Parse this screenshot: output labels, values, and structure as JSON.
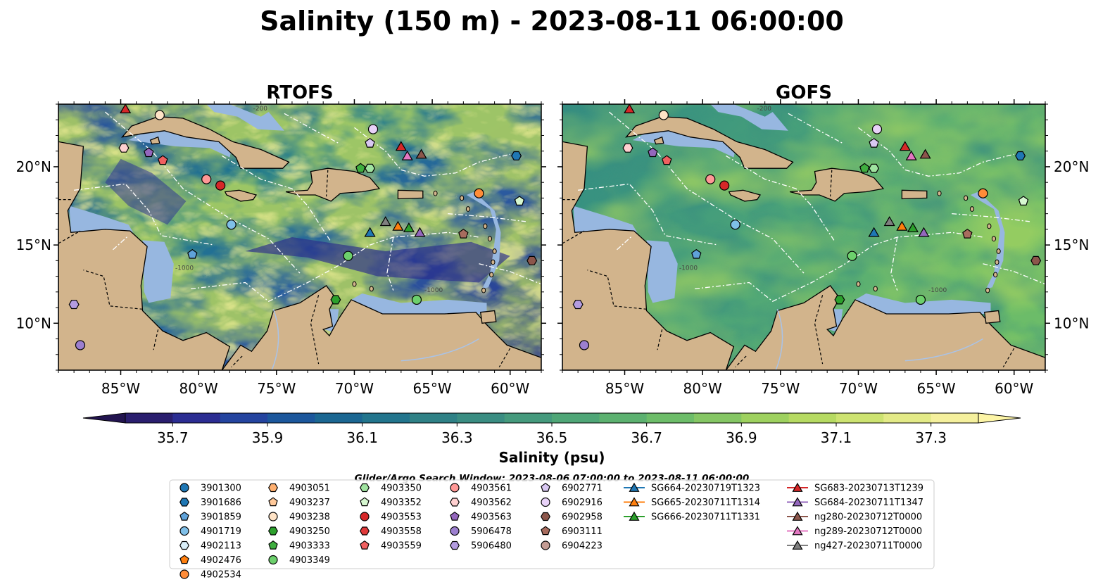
{
  "title": "Salinity (150 m) - 2023-08-11 06:00:00",
  "panels": [
    {
      "name": "RTOFS",
      "mode": "rtofs"
    },
    {
      "name": "GOFS",
      "mode": "gofs"
    }
  ],
  "map": {
    "lon_range": [
      -89,
      -58
    ],
    "lat_range": [
      7,
      24
    ],
    "lon_ticks": [
      -85,
      -80,
      -75,
      -70,
      -65,
      -60
    ],
    "lon_tick_labels": [
      "85°W",
      "80°W",
      "75°W",
      "70°W",
      "65°W",
      "60°W"
    ],
    "lat_ticks": [
      10,
      15,
      20
    ],
    "lat_tick_labels": [
      "10°N",
      "15°N",
      "20°N"
    ],
    "contour_labels": [
      "-1000",
      "-1000",
      "-200"
    ],
    "colors": {
      "land": "#d2b48c",
      "shelf": "#97b7e0",
      "deep": "#2c2a7e"
    }
  },
  "colorbar": {
    "label": "Salinity (psu)",
    "min": 35.6,
    "max": 37.4,
    "step": 0.1,
    "ticks": [
      "35.7",
      "35.9",
      "36.1",
      "36.3",
      "36.5",
      "36.7",
      "36.9",
      "37.1",
      "37.3"
    ],
    "extend": "both",
    "colors": [
      "#2a1e6e",
      "#2b2d92",
      "#24449f",
      "#1c579c",
      "#1b6792",
      "#22758d",
      "#2f8186",
      "#3a8d82",
      "#459a7d",
      "#4fa677",
      "#5cb170",
      "#6dbd69",
      "#85c664",
      "#9ed15f",
      "#b6da62",
      "#cde371",
      "#e3ea87",
      "#f5f09d"
    ]
  },
  "search_window": "Glider/Argo Search Window: 2023-08-06 07:00:00 to 2023-08-11 06:00:00",
  "legend": [
    {
      "label": "3901300",
      "marker": "circle",
      "color": "#1f77b4"
    },
    {
      "label": "3901686",
      "marker": "hexagon",
      "color": "#1f77b4"
    },
    {
      "label": "3901859",
      "marker": "pentagon",
      "color": "#5fa2d9"
    },
    {
      "label": "4901719",
      "marker": "circle",
      "color": "#7fbfe8"
    },
    {
      "label": "4902113",
      "marker": "hexagon",
      "color": "#d9eef8"
    },
    {
      "label": "4902476",
      "marker": "pentagon",
      "color": "#ff7f0e"
    },
    {
      "label": "4902534",
      "marker": "circle",
      "color": "#ff8c38"
    },
    {
      "label": "4903051",
      "marker": "hexagon",
      "color": "#ffb070"
    },
    {
      "label": "4903237",
      "marker": "pentagon",
      "color": "#ffc99a"
    },
    {
      "label": "4903238",
      "marker": "circle",
      "color": "#ffe3c6"
    },
    {
      "label": "4903250",
      "marker": "hexagon",
      "color": "#2ca02c"
    },
    {
      "label": "4903333",
      "marker": "pentagon",
      "color": "#3fae3f"
    },
    {
      "label": "4903349",
      "marker": "circle",
      "color": "#6cd06c"
    },
    {
      "label": "4903350",
      "marker": "hexagon",
      "color": "#a0e3a0"
    },
    {
      "label": "4903352",
      "marker": "pentagon",
      "color": "#d6f7d0"
    },
    {
      "label": "4903553",
      "marker": "circle",
      "color": "#d62728"
    },
    {
      "label": "4903558",
      "marker": "hexagon",
      "color": "#e0393a"
    },
    {
      "label": "4903559",
      "marker": "pentagon",
      "color": "#f06060"
    },
    {
      "label": "4903561",
      "marker": "circle",
      "color": "#ff9896"
    },
    {
      "label": "4903562",
      "marker": "hexagon",
      "color": "#ffd0d0"
    },
    {
      "label": "4903563",
      "marker": "pentagon",
      "color": "#9467bd"
    },
    {
      "label": "5906478",
      "marker": "circle",
      "color": "#9c7fcf"
    },
    {
      "label": "5906480",
      "marker": "hexagon",
      "color": "#b49ce0"
    },
    {
      "label": "6902771",
      "marker": "pentagon",
      "color": "#d8c8f2"
    },
    {
      "label": "6902916",
      "marker": "circle",
      "color": "#e8d2f8"
    },
    {
      "label": "6902958",
      "marker": "hexagon",
      "color": "#8c564b"
    },
    {
      "label": "6903111",
      "marker": "pentagon",
      "color": "#a86c5e"
    },
    {
      "label": "6904223",
      "marker": "circle",
      "color": "#c49c94"
    },
    {
      "label": "SG664-20230719T1323",
      "marker": "triangle",
      "color": "#1f77b4"
    },
    {
      "label": "SG665-20230711T1314",
      "marker": "triangle",
      "color": "#ff7f0e"
    },
    {
      "label": "SG666-20230711T1331",
      "marker": "triangle",
      "color": "#2ca02c"
    },
    {
      "label": "SG683-20230713T1239",
      "marker": "triangle",
      "color": "#d62728"
    },
    {
      "label": "SG684-20230711T1347",
      "marker": "triangle",
      "color": "#9467bd"
    },
    {
      "label": "ng280-20230712T0000",
      "marker": "triangle",
      "color": "#8c564b"
    },
    {
      "label": "ng289-20230712T0000",
      "marker": "triangle",
      "color": "#e377c2"
    },
    {
      "label": "ng427-20230711T0000",
      "marker": "triangle",
      "color": "#7f7f7f"
    }
  ],
  "map_markers": [
    {
      "id": "3901686",
      "lon": -59.6,
      "lat": 20.7
    },
    {
      "id": "4901719",
      "lon": -77.9,
      "lat": 16.3
    },
    {
      "id": "3901859",
      "lon": -80.4,
      "lat": 14.4
    },
    {
      "id": "4902534",
      "lon": -62.0,
      "lat": 18.3
    },
    {
      "id": "4903352",
      "lon": -59.4,
      "lat": 17.8
    },
    {
      "id": "4903349",
      "lon": -70.4,
      "lat": 14.3
    },
    {
      "id": "4903333",
      "lon": -69.6,
      "lat": 19.9
    },
    {
      "id": "4903350",
      "lon": -69.0,
      "lat": 19.9
    },
    {
      "id": "4903553",
      "lon": -78.6,
      "lat": 18.8
    },
    {
      "id": "4903561",
      "lon": -79.5,
      "lat": 19.2
    },
    {
      "id": "4903559",
      "lon": -82.3,
      "lat": 20.4
    },
    {
      "id": "4903562",
      "lon": -84.8,
      "lat": 21.2
    },
    {
      "id": "4903563",
      "lon": -83.2,
      "lat": 20.9
    },
    {
      "id": "4903238",
      "lon": -82.5,
      "lat": 23.3
    },
    {
      "id": "4903250",
      "lon": -71.2,
      "lat": 11.5
    },
    {
      "id": "4903349",
      "lon": -66.0,
      "lat": 11.5
    },
    {
      "id": "6902771",
      "lon": -69.0,
      "lat": 21.5
    },
    {
      "id": "6902916",
      "lon": -68.8,
      "lat": 22.4
    },
    {
      "id": "6902958",
      "lon": -58.6,
      "lat": 14.0
    },
    {
      "id": "6903111",
      "lon": -63.0,
      "lat": 15.7
    },
    {
      "id": "5906478",
      "lon": -87.6,
      "lat": 8.6
    },
    {
      "id": "5906480",
      "lon": -88.0,
      "lat": 11.2
    },
    {
      "id": "SG683-20230713T1239",
      "lon": -67.0,
      "lat": 21.3
    },
    {
      "id": "SG683-20230713T1239",
      "lon": -84.7,
      "lat": 23.7
    },
    {
      "id": "ng289-20230712T0000",
      "lon": -66.6,
      "lat": 20.7
    },
    {
      "id": "ng280-20230712T0000",
      "lon": -65.7,
      "lat": 20.8
    },
    {
      "id": "SG664-20230719T1323",
      "lon": -69.0,
      "lat": 15.8
    },
    {
      "id": "ng427-20230711T0000",
      "lon": -68.0,
      "lat": 16.5
    },
    {
      "id": "SG665-20230711T1314",
      "lon": -67.2,
      "lat": 16.2
    },
    {
      "id": "SG666-20230711T1331",
      "lon": -66.5,
      "lat": 16.1
    },
    {
      "id": "SG684-20230711T1347",
      "lon": -65.8,
      "lat": 15.8
    }
  ]
}
